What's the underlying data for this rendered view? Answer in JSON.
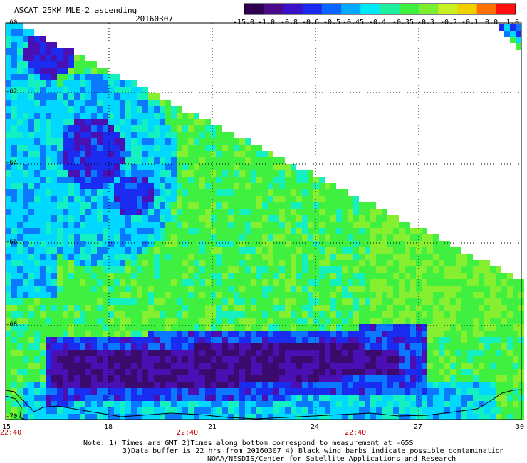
{
  "header": {
    "title": "ASCAT 25KM MLE-2 ascending",
    "date": "20160307"
  },
  "colorbar": {
    "labels": [
      "-15.0",
      "-1.0",
      "-0.8",
      "-0.6",
      "-0.5",
      "-0.45",
      "-0.4",
      "-0.35",
      "-0.3",
      "-0.2",
      "-0.1",
      "0.0",
      "1.0"
    ],
    "colors": [
      "#300050",
      "#4a0a8a",
      "#3a10c8",
      "#1a28f0",
      "#0a64ff",
      "#00aaff",
      "#00eaf4",
      "#1ef0a0",
      "#40f040",
      "#7cf030",
      "#c8f020",
      "#f0d000",
      "#ff7000",
      "#ff1010"
    ]
  },
  "map": {
    "lat_labels": [
      "-60",
      "-62",
      "-64",
      "-66",
      "-68",
      "-70"
    ],
    "lon_labels": [
      "15",
      "18",
      "21",
      "24",
      "27",
      "30"
    ],
    "time_labels": [
      "22:40",
      "22:40",
      "22:40"
    ],
    "colors": {
      "dark_purple": "#3c0a6c",
      "indigo": "#4a10b4",
      "blue": "#1a2cf0",
      "light_blue": "#0a78ff",
      "cyan": "#00d8ff",
      "teal": "#14f0c0",
      "green": "#40f040",
      "lime": "#86f030"
    }
  },
  "notes": {
    "line1": "Note: 1) Times are GMT 2)Times along bottom correspond to measurement at -65S",
    "line2": "3)Data buffer is 22 hrs from 20160307 4) Black wind barbs indicate possible contamination",
    "line3": "NOAA/NESDIS/Center for Satellite Applications and Research"
  }
}
